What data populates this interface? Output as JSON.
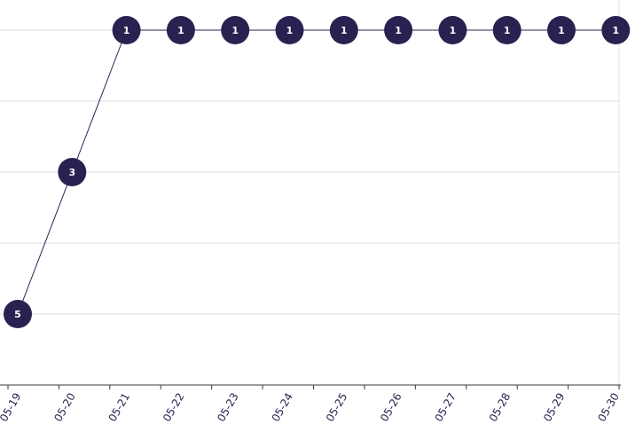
{
  "chart_data": {
    "type": "line",
    "title": "",
    "xlabel": "",
    "ylabel": "",
    "x": [
      "05-19",
      "05-20",
      "05-21",
      "05-22",
      "05-23",
      "05-24",
      "05-25",
      "05-26",
      "05-27",
      "05-28",
      "05-29",
      "05-30"
    ],
    "series": [
      {
        "values": [
          5,
          3,
          1,
          1,
          1,
          1,
          1,
          1,
          1,
          1,
          1,
          1
        ],
        "point_labels": [
          "5",
          "3",
          "1",
          "1",
          "1",
          "1",
          "1",
          "1",
          "1",
          "1",
          "1",
          "1"
        ]
      }
    ],
    "y_reversed": true,
    "ylim": [
      6,
      1
    ],
    "grid": true,
    "legend": "none",
    "colors": {
      "series": "#2b2150",
      "marker": "#2b2150",
      "marker_text": "#ffffff",
      "tick_label": "#2b2150",
      "grid": "#dcdcdc",
      "axis": "#3a3a3a"
    }
  }
}
